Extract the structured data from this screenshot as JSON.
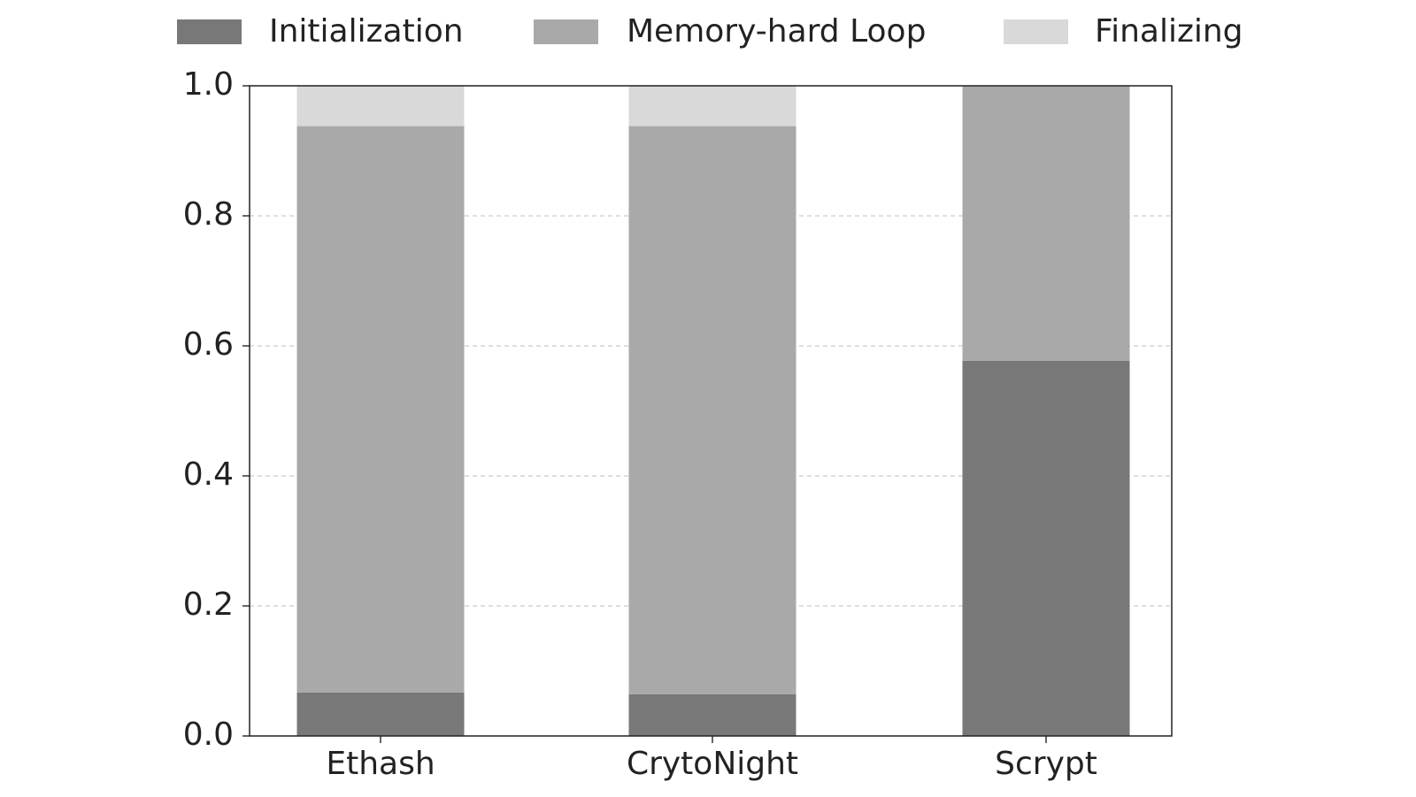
{
  "chart_data": {
    "type": "stacked_bar",
    "categories": [
      "Ethash",
      "CrytoNight",
      "Scrypt"
    ],
    "series": [
      {
        "name": "Initialization",
        "color": "#787878",
        "values": [
          0.067,
          0.064,
          0.577
        ]
      },
      {
        "name": "Memory-hard Loop",
        "color": "#a9a9a9",
        "values": [
          0.871,
          0.874,
          0.423
        ]
      },
      {
        "name": "Finalizing",
        "color": "#d9d9d9",
        "values": [
          0.062,
          0.062,
          0
        ]
      }
    ],
    "ylim": [
      0,
      1
    ],
    "yticks": [
      {
        "value": 0,
        "label": "0.0"
      },
      0.2,
      0.4,
      0.6,
      0.8,
      {
        "value": 1,
        "label": "1.0"
      }
    ],
    "grid": true,
    "legend": "top"
  }
}
